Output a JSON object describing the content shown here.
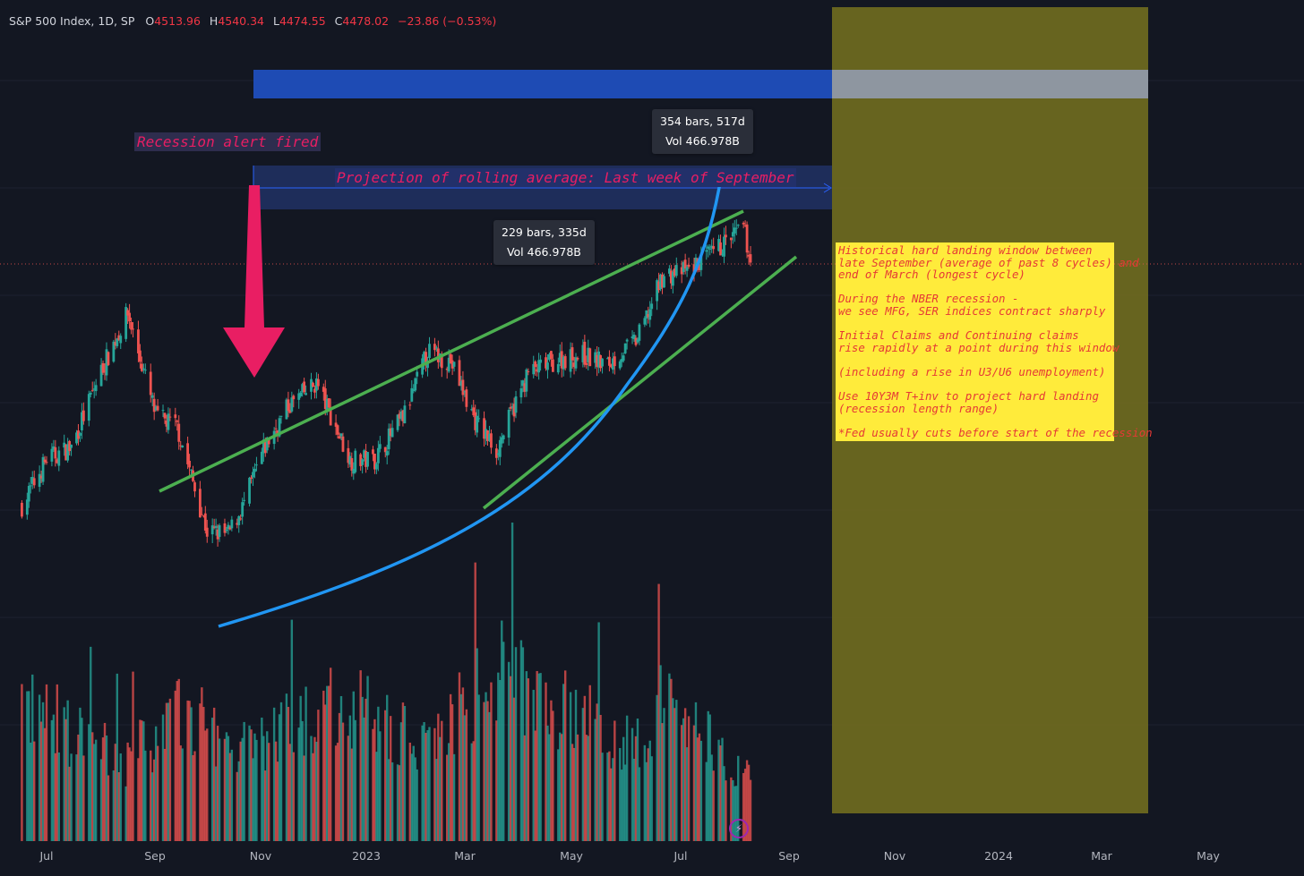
{
  "header": {
    "symbol": "S&P 500 Index, 1D, SP",
    "open_label": "O",
    "open": "4513.96",
    "high_label": "H",
    "high": "4540.34",
    "low_label": "L",
    "low": "4474.55",
    "close_label": "C",
    "close": "4478.02",
    "change": "−23.86 (−0.53%)"
  },
  "annotations": {
    "recession_alert": "Recession alert fired",
    "projection": "Projection of rolling average: Last week of September",
    "measure_1_bars": "354 bars, 517d",
    "measure_1_vol": "Vol 466.978B",
    "measure_2_bars": "229 bars, 335d",
    "measure_2_vol": "Vol 466.978B"
  },
  "note": {
    "lines": [
      "Historical hard landing window between",
      "late September (average of past 8 cycles) and",
      "end of March (longest cycle)",
      "",
      "During the NBER recession -",
      "we see MFG, SER indices contract sharply",
      "",
      "Initial Claims and Continuing claims",
      "rise rapidly at a point during this window",
      "",
      "(including a rise in U3/U6 unemployment)",
      "",
      "Use 10Y3M T+inv to project hard landing",
      "(recession length range)",
      "",
      "*Fed usually cuts before start of the recession"
    ]
  },
  "colors": {
    "background": "#131722",
    "up": "#26a69a",
    "down": "#ef5350",
    "trend_green": "#4caf50",
    "curve_blue": "#2196f3",
    "arrow_pink": "#e91e63",
    "window_olive": "#6f6b1f",
    "note_bg": "#ffeb3b",
    "note_text": "#e53935"
  },
  "chart_data": {
    "type": "candlestick",
    "title": "S&P 500 Index, 1D, SP",
    "x_ticks": [
      "Jul",
      "Sep",
      "Nov",
      "2023",
      "Mar",
      "May",
      "Jul",
      "Sep",
      "Nov",
      "2024",
      "Mar",
      "May"
    ],
    "price_path": {
      "dates": [
        "2022-06-17",
        "2022-07-01",
        "2022-07-15",
        "2022-08-01",
        "2022-08-16",
        "2022-09-01",
        "2022-09-13",
        "2022-09-30",
        "2022-10-12",
        "2022-10-20",
        "2022-11-01",
        "2022-11-15",
        "2022-12-01",
        "2022-12-20",
        "2023-01-03",
        "2023-01-20",
        "2023-02-02",
        "2023-02-15",
        "2023-03-01",
        "2023-03-13",
        "2023-03-31",
        "2023-04-18",
        "2023-05-01",
        "2023-05-15",
        "2023-06-01",
        "2023-06-15",
        "2023-06-30",
        "2023-07-14",
        "2023-07-31",
        "2023-08-04"
      ],
      "close": [
        3670,
        3825,
        3863,
        4118,
        4305,
        3967,
        3932,
        3586,
        3577,
        3665,
        3856,
        4000,
        4076,
        3821,
        3825,
        3973,
        4179,
        4147,
        3951,
        3855,
        4109,
        4155,
        4168,
        4136,
        4221,
        4426,
        4450,
        4505,
        4589,
        4478
      ]
    },
    "volume_path": {
      "dates": [
        "2022-06-17",
        "2022-08-15",
        "2022-09-16",
        "2022-10-21",
        "2022-12-16",
        "2023-01-31",
        "2023-03-17",
        "2023-05-31",
        "2023-06-16",
        "2023-08-04"
      ],
      "volume_b": [
        4.5,
        2.7,
        4.2,
        3.0,
        4.6,
        3.2,
        5.6,
        3.0,
        4.7,
        2.2
      ]
    },
    "trendlines": [
      {
        "name": "upper channel",
        "from": [
          "2022-09-22",
          3780
        ],
        "to": [
          "2023-08-02",
          4600
        ]
      },
      {
        "name": "lower channel",
        "from": [
          "2023-03-13",
          3800
        ],
        "to": [
          "2023-08-25",
          4520
        ]
      },
      {
        "name": "parabolic fit",
        "from": [
          "2022-10-10",
          3490
        ],
        "to": [
          "2023-07-27",
          4640
        ]
      }
    ],
    "zones": [
      {
        "type": "projection",
        "from": "2022-10-31",
        "to": "2023-09-29"
      },
      {
        "type": "hard-landing-window",
        "from": "2023-09-26",
        "to": "2024-03-31"
      }
    ]
  }
}
